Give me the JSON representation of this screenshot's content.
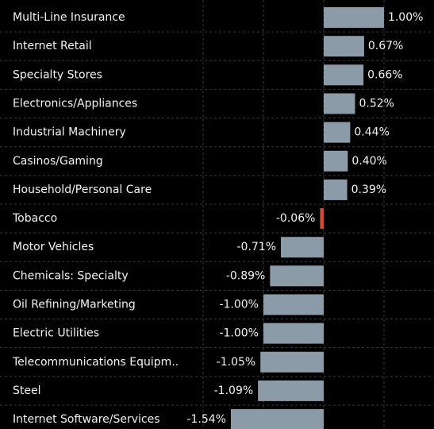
{
  "chart_data": {
    "type": "barh",
    "categories": [
      "Multi-Line Insurance",
      "Internet Retail",
      "Specialty Stores",
      "Electronics/Appliances",
      "Industrial Machinery",
      "Casinos/Gaming",
      "Household/Personal Care",
      "Tobacco",
      "Motor Vehicles",
      "Chemicals: Specialty",
      "Oil Refining/Marketing",
      "Electric Utilities",
      "Telecommunications Equipm..",
      "Steel",
      "Internet Software/Services"
    ],
    "values": [
      1.0,
      0.67,
      0.66,
      0.52,
      0.44,
      0.4,
      0.39,
      -0.06,
      -0.71,
      -0.89,
      -1.0,
      -1.0,
      -1.05,
      -1.09,
      -1.54
    ],
    "value_labels": [
      "1.00%",
      "0.67%",
      "0.66%",
      "0.52%",
      "0.44%",
      "0.40%",
      "0.39%",
      "-0.06%",
      "-0.71%",
      "-0.89%",
      "-1.00%",
      "-1.00%",
      "-1.05%",
      "-1.09%",
      "-1.54%"
    ],
    "colors": [
      "#8b9ca8",
      "#8b9ca8",
      "#8b9ca8",
      "#8b9ca8",
      "#8b9ca8",
      "#8b9ca8",
      "#8b9ca8",
      "#e8412c",
      "#8b9ca8",
      "#8b9ca8",
      "#8b9ca8",
      "#8b9ca8",
      "#8b9ca8",
      "#8b9ca8",
      "#8b9ca8"
    ],
    "xlim": [
      -5.37,
      1.83
    ],
    "xticks": [
      -2,
      -1,
      0,
      1
    ],
    "grid": true
  }
}
